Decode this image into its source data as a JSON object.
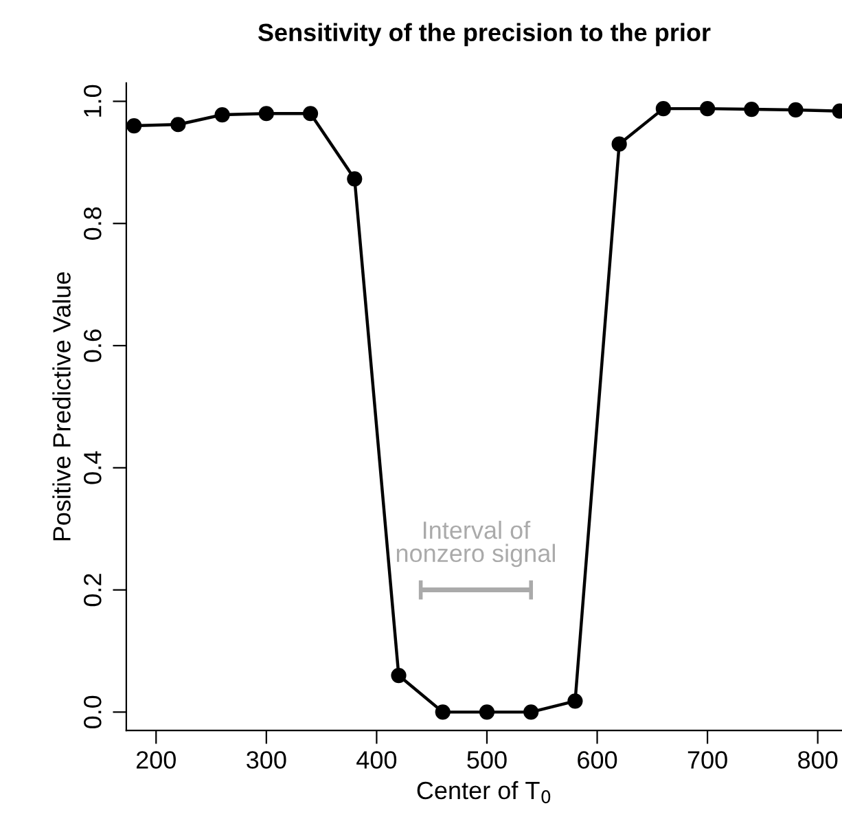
{
  "chart_data": {
    "type": "line",
    "title": "Sensitivity of the precision to the prior",
    "xlabel": "Center of T$_{0}$",
    "ylabel": "Positive Predictive Value",
    "x": [
      180,
      220,
      260,
      300,
      340,
      380,
      420,
      460,
      500,
      540,
      580,
      620,
      660,
      700,
      740,
      780,
      820
    ],
    "series": [
      {
        "color": "#000000",
        "values": [
          0.96,
          0.962,
          0.978,
          0.98,
          0.98,
          0.873,
          0.06,
          0.0,
          0.0,
          0.0,
          0.018,
          0.93,
          0.988,
          0.988,
          0.987,
          0.986,
          0.984
        ]
      },
      {
        "type": "line",
        "marker": "none",
        "color": "#aaaaaa",
        "x": [
          440,
          540
        ],
        "values": [
          0.2,
          0.2
        ]
      }
    ],
    "annotations": [
      {
        "text": "Interval of\nnonzero signal",
        "x": 490,
        "y": 0.2
      }
    ],
    "marker": "circle",
    "line_style": "solid",
    "grid": false,
    "legend": false,
    "xlim": [
      173,
      822
    ],
    "ylim": [
      -0.03,
      1.03
    ],
    "xticks": [
      200,
      300,
      400,
      500,
      600,
      700,
      800
    ],
    "yticks": [
      {
        "value": 0,
        "label": "0.0"
      },
      0.2,
      0.4,
      0.6,
      0.8,
      {
        "value": 1,
        "label": "1.0"
      }
    ]
  }
}
